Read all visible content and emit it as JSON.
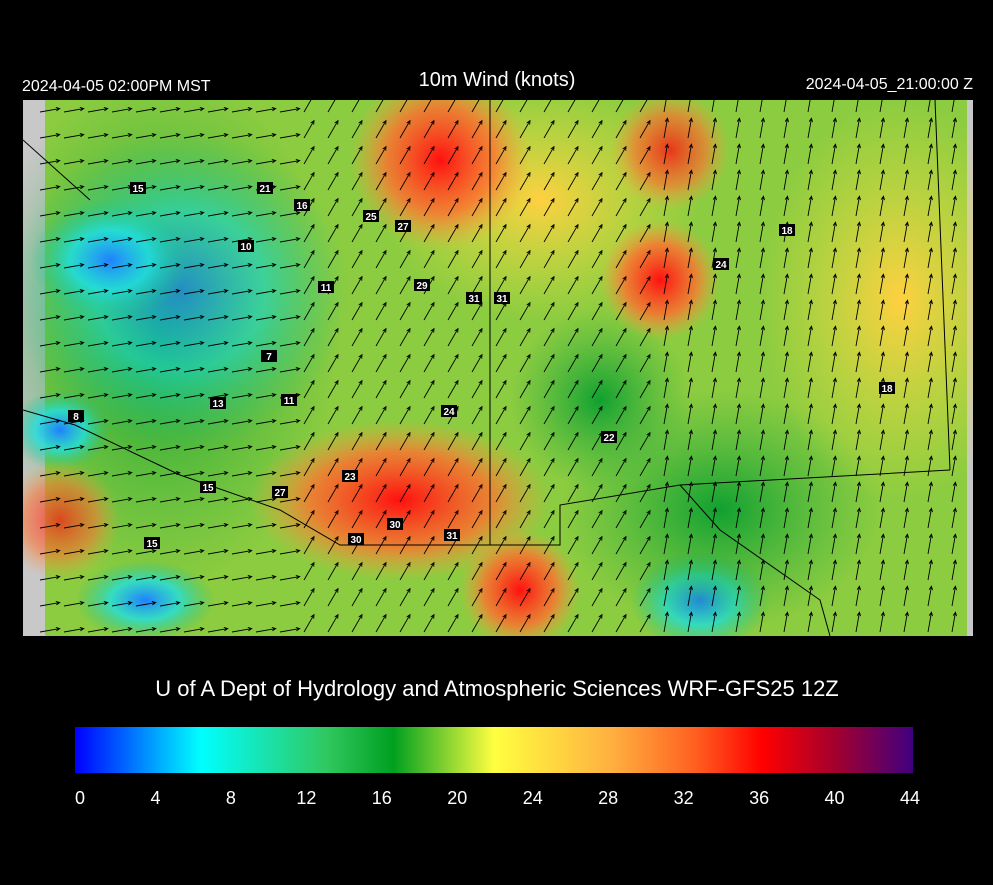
{
  "header": {
    "left": "2024-04-05 02:00PM MST",
    "title": "10m Wind (knots)",
    "right": "2024-04-05_21:00:00 Z"
  },
  "stations": [
    15,
    21,
    16,
    25,
    27,
    10,
    18,
    24,
    11,
    29,
    31,
    31,
    7,
    18,
    13,
    11,
    8,
    24,
    22,
    23,
    15,
    27,
    30,
    30,
    31,
    15
  ],
  "credit": "U of A Dept of Hydrology and Atmospheric Sciences WRF-GFS25 12Z",
  "colorbar": {
    "range": [
      0,
      44
    ],
    "ticks": [
      0,
      4,
      8,
      12,
      16,
      20,
      24,
      28,
      32,
      36,
      40,
      44
    ]
  }
}
